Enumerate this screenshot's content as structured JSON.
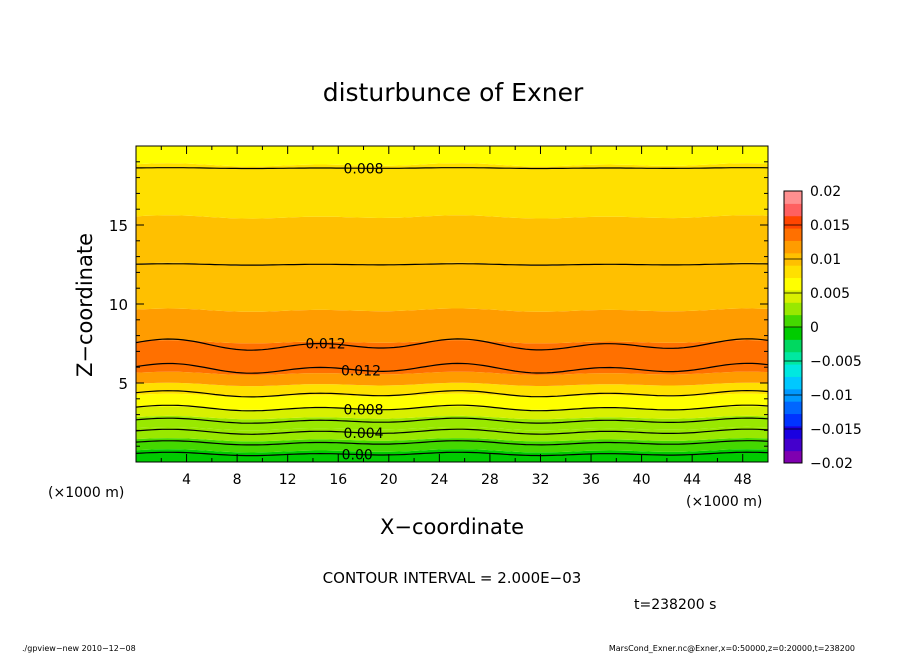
{
  "chart_data": {
    "type": "contour",
    "title": "disturbunce of Exner",
    "xlabel": "X−coordinate",
    "ylabel": "Z−coordinate",
    "x_unit_left": "(×1000 m)",
    "x_unit_right": "(×1000 m)",
    "xlim": [
      0,
      50
    ],
    "ylim": [
      0,
      20
    ],
    "xticks": [
      "4",
      "8",
      "12",
      "16",
      "20",
      "24",
      "28",
      "32",
      "36",
      "40",
      "44",
      "48"
    ],
    "yticks": [
      "5",
      "10",
      "15"
    ],
    "colorbar": {
      "min": -0.02,
      "max": 0.02,
      "labels": [
        "0.02",
        "0.015",
        "0.01",
        "0.005",
        "0",
        "−0.005",
        "−0.01",
        "−0.015",
        "−0.02"
      ],
      "colors": [
        "#7f00b0",
        "#4400cc",
        "#1a00e0",
        "#0033ff",
        "#0066ff",
        "#0099ff",
        "#00c8ff",
        "#00e8e0",
        "#00e8a0",
        "#00d860",
        "#00cc00",
        "#44d800",
        "#99e800",
        "#d8f000",
        "#ffff00",
        "#ffe000",
        "#ffc000",
        "#ff9c00",
        "#ff7000",
        "#ff4500",
        "#ff6060",
        "#ff9090"
      ]
    },
    "bands": [
      {
        "z0": 0.0,
        "z1": 0.7,
        "value": -0.001
      },
      {
        "z0": 0.7,
        "z1": 1.4,
        "value": 0.001
      },
      {
        "z0": 1.4,
        "z1": 2.1,
        "value": 0.002
      },
      {
        "z0": 2.1,
        "z1": 2.8,
        "value": 0.003
      },
      {
        "z0": 2.8,
        "z1": 3.4,
        "value": 0.005
      },
      {
        "z0": 3.4,
        "z1": 4.2,
        "value": 0.007
      },
      {
        "z0": 4.2,
        "z1": 4.9,
        "value": 0.009
      },
      {
        "z0": 4.9,
        "z1": 5.6,
        "value": 0.011
      },
      {
        "z0": 5.6,
        "z1": 7.6,
        "value": 0.013
      },
      {
        "z0": 7.6,
        "z1": 9.6,
        "value": 0.0115
      },
      {
        "z0": 9.6,
        "z1": 12.5,
        "value": 0.0105
      },
      {
        "z0": 12.5,
        "z1": 15.5,
        "value": 0.0095
      },
      {
        "z0": 15.5,
        "z1": 18.8,
        "value": 0.0075
      },
      {
        "z0": 18.8,
        "z1": 20.0,
        "value": 0.0065
      }
    ],
    "contours": [
      {
        "level": "0.00",
        "z": 0.5,
        "amp": 0.12,
        "label": "0.00",
        "label_x": 17.5
      },
      {
        "level": "0.002",
        "z": 1.2,
        "amp": 0.15,
        "label": "",
        "label_x": null
      },
      {
        "level": "0.004",
        "z": 1.9,
        "amp": 0.18,
        "label": "0.004",
        "label_x": 18
      },
      {
        "level": "0.006",
        "z": 2.6,
        "amp": 0.18,
        "label": "",
        "label_x": null
      },
      {
        "level": "0.008",
        "z": 3.4,
        "amp": 0.2,
        "label": "0.008",
        "label_x": 18
      },
      {
        "level": "0.010",
        "z": 4.3,
        "amp": 0.22,
        "label": "",
        "label_x": null
      },
      {
        "level": "0.012",
        "z": 5.9,
        "amp": 0.35,
        "label": "0.012",
        "label_x": 17.8
      },
      {
        "level": "0.012",
        "z": 7.4,
        "amp": 0.4,
        "label": "0.012",
        "label_x": 15
      },
      {
        "level": "0.010",
        "z": 12.5,
        "amp": 0.05,
        "label": "",
        "label_x": null
      },
      {
        "level": "0.008",
        "z": 18.6,
        "amp": 0.03,
        "label": "0.008",
        "label_x": 18
      }
    ],
    "contour_interval": "CONTOUR INTERVAL = 2.000E−03",
    "time": "t=238200 s"
  },
  "footer": {
    "left": "./gpview−new  2010−12−08",
    "right": "MarsCond_Exner.nc@Exner,x=0:50000,z=0:20000,t=238200"
  }
}
